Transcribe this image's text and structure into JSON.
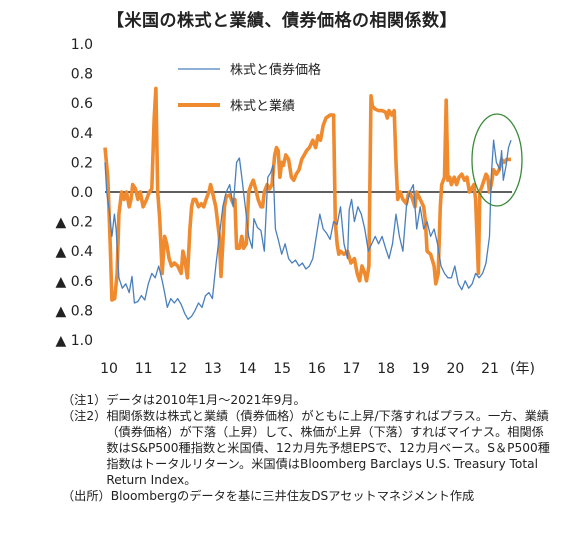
{
  "chart_data": {
    "type": "line",
    "title": "【米国の株式と業績、債券価格の相関係数】",
    "x_unit_label": "(年)",
    "x_tick_labels": [
      "10",
      "11",
      "12",
      "13",
      "14",
      "15",
      "16",
      "17",
      "18",
      "19",
      "20",
      "21"
    ],
    "y_tick_labels": [
      "1.0",
      "0.8",
      "0.6",
      "0.4",
      "0.2",
      "0.0",
      "▲ 0.2",
      "▲ 0.4",
      "▲ 0.6",
      "▲ 0.8",
      "▲ 1.0"
    ],
    "ylim": [
      -1.0,
      1.0
    ],
    "xlim": [
      2010.0,
      2021.75
    ],
    "zero_line": true,
    "grid": false,
    "legend_position": "top-center",
    "annotation": "green ellipse around 2021",
    "series": [
      {
        "name": "株式と債券価格",
        "color": "#4a7fbd",
        "points": [
          [
            2010.0,
            0.2
          ],
          [
            2010.05,
            0.0
          ],
          [
            2010.12,
            -0.12
          ],
          [
            2010.2,
            -0.3
          ],
          [
            2010.27,
            -0.15
          ],
          [
            2010.32,
            -0.25
          ],
          [
            2010.4,
            -0.58
          ],
          [
            2010.5,
            -0.65
          ],
          [
            2010.6,
            -0.62
          ],
          [
            2010.7,
            -0.68
          ],
          [
            2010.78,
            -0.57
          ],
          [
            2010.85,
            -0.75
          ],
          [
            2010.95,
            -0.74
          ],
          [
            2011.05,
            -0.7
          ],
          [
            2011.15,
            -0.73
          ],
          [
            2011.25,
            -0.62
          ],
          [
            2011.35,
            -0.55
          ],
          [
            2011.45,
            -0.58
          ],
          [
            2011.55,
            -0.5
          ],
          [
            2011.65,
            -0.6
          ],
          [
            2011.72,
            -0.68
          ],
          [
            2011.8,
            -0.78
          ],
          [
            2011.9,
            -0.72
          ],
          [
            2012.0,
            -0.75
          ],
          [
            2012.1,
            -0.72
          ],
          [
            2012.2,
            -0.76
          ],
          [
            2012.3,
            -0.82
          ],
          [
            2012.4,
            -0.86
          ],
          [
            2012.5,
            -0.84
          ],
          [
            2012.6,
            -0.8
          ],
          [
            2012.7,
            -0.75
          ],
          [
            2012.8,
            -0.78
          ],
          [
            2012.9,
            -0.7
          ],
          [
            2013.0,
            -0.68
          ],
          [
            2013.1,
            -0.72
          ],
          [
            2013.2,
            -0.5
          ],
          [
            2013.3,
            -0.3
          ],
          [
            2013.4,
            -0.1
          ],
          [
            2013.5,
            0.0
          ],
          [
            2013.6,
            0.05
          ],
          [
            2013.7,
            -0.1
          ],
          [
            2013.8,
            0.2
          ],
          [
            2013.88,
            0.23
          ],
          [
            2013.95,
            0.1
          ],
          [
            2014.05,
            -0.1
          ],
          [
            2014.15,
            -0.3
          ],
          [
            2014.25,
            -0.38
          ],
          [
            2014.3,
            -0.18
          ],
          [
            2014.4,
            -0.24
          ],
          [
            2014.5,
            -0.26
          ],
          [
            2014.6,
            -0.4
          ],
          [
            2014.7,
            0.1
          ],
          [
            2014.78,
            0.13
          ],
          [
            2014.85,
            0.18
          ],
          [
            2014.92,
            -0.25
          ],
          [
            2015.0,
            -0.32
          ],
          [
            2015.1,
            -0.42
          ],
          [
            2015.2,
            -0.35
          ],
          [
            2015.3,
            -0.45
          ],
          [
            2015.4,
            -0.48
          ],
          [
            2015.5,
            -0.46
          ],
          [
            2015.6,
            -0.5
          ],
          [
            2015.7,
            -0.48
          ],
          [
            2015.8,
            -0.52
          ],
          [
            2015.9,
            -0.5
          ],
          [
            2016.0,
            -0.45
          ],
          [
            2016.1,
            -0.3
          ],
          [
            2016.2,
            -0.15
          ],
          [
            2016.3,
            -0.25
          ],
          [
            2016.4,
            -0.28
          ],
          [
            2016.5,
            -0.32
          ],
          [
            2016.6,
            -0.2
          ],
          [
            2016.7,
            -0.22
          ],
          [
            2016.8,
            -0.1
          ],
          [
            2016.9,
            -0.35
          ],
          [
            2017.0,
            -0.45
          ],
          [
            2017.05,
            -0.12
          ],
          [
            2017.12,
            -0.05
          ],
          [
            2017.2,
            -0.2
          ],
          [
            2017.3,
            -0.1
          ],
          [
            2017.4,
            -0.15
          ],
          [
            2017.5,
            -0.25
          ],
          [
            2017.6,
            -0.4
          ],
          [
            2017.7,
            -0.35
          ],
          [
            2017.8,
            -0.3
          ],
          [
            2017.9,
            -0.35
          ],
          [
            2018.0,
            -0.3
          ],
          [
            2018.1,
            -0.38
          ],
          [
            2018.2,
            -0.45
          ],
          [
            2018.3,
            -0.35
          ],
          [
            2018.4,
            -0.15
          ],
          [
            2018.5,
            -0.3
          ],
          [
            2018.6,
            -0.4
          ],
          [
            2018.7,
            -0.1
          ],
          [
            2018.8,
            0.0
          ],
          [
            2018.9,
            0.05
          ],
          [
            2019.0,
            -0.25
          ],
          [
            2019.1,
            -0.1
          ],
          [
            2019.2,
            -0.25
          ],
          [
            2019.3,
            -0.2
          ],
          [
            2019.4,
            -0.3
          ],
          [
            2019.5,
            -0.25
          ],
          [
            2019.6,
            -0.35
          ],
          [
            2019.7,
            -0.5
          ],
          [
            2019.8,
            -0.55
          ],
          [
            2019.9,
            -0.58
          ],
          [
            2020.0,
            -0.58
          ],
          [
            2020.1,
            -0.5
          ],
          [
            2020.2,
            -0.62
          ],
          [
            2020.3,
            -0.66
          ],
          [
            2020.4,
            -0.6
          ],
          [
            2020.5,
            -0.65
          ],
          [
            2020.6,
            -0.62
          ],
          [
            2020.7,
            -0.55
          ],
          [
            2020.8,
            -0.58
          ],
          [
            2020.9,
            -0.55
          ],
          [
            2021.0,
            -0.48
          ],
          [
            2021.1,
            -0.3
          ],
          [
            2021.15,
            0.1
          ],
          [
            2021.22,
            0.35
          ],
          [
            2021.3,
            0.2
          ],
          [
            2021.4,
            0.15
          ],
          [
            2021.45,
            0.28
          ],
          [
            2021.5,
            0.08
          ],
          [
            2021.58,
            0.18
          ],
          [
            2021.65,
            0.3
          ],
          [
            2021.72,
            0.35
          ]
        ]
      },
      {
        "name": "株式と業績",
        "color": "#f08a2e",
        "points": [
          [
            2010.0,
            0.3
          ],
          [
            2010.08,
            0.1
          ],
          [
            2010.15,
            -0.35
          ],
          [
            2010.2,
            -0.73
          ],
          [
            2010.28,
            -0.72
          ],
          [
            2010.35,
            -0.55
          ],
          [
            2010.4,
            -0.15
          ],
          [
            2010.48,
            0.0
          ],
          [
            2010.55,
            -0.05
          ],
          [
            2010.62,
            0.0
          ],
          [
            2010.7,
            -0.1
          ],
          [
            2010.75,
            -0.05
          ],
          [
            2010.8,
            0.05
          ],
          [
            2010.88,
            0.02
          ],
          [
            2010.95,
            -0.05
          ],
          [
            2011.02,
            0.0
          ],
          [
            2011.1,
            -0.1
          ],
          [
            2011.2,
            -0.05
          ],
          [
            2011.28,
            0.0
          ],
          [
            2011.35,
            0.02
          ],
          [
            2011.42,
            0.5
          ],
          [
            2011.47,
            0.7
          ],
          [
            2011.52,
            0.0
          ],
          [
            2011.58,
            -0.18
          ],
          [
            2011.65,
            -0.55
          ],
          [
            2011.72,
            -0.3
          ],
          [
            2011.78,
            -0.35
          ],
          [
            2011.85,
            -0.45
          ],
          [
            2011.92,
            -0.5
          ],
          [
            2012.0,
            -0.48
          ],
          [
            2012.1,
            -0.5
          ],
          [
            2012.2,
            -0.55
          ],
          [
            2012.25,
            -0.4
          ],
          [
            2012.3,
            -0.45
          ],
          [
            2012.38,
            -0.58
          ],
          [
            2012.45,
            -0.25
          ],
          [
            2012.5,
            -0.1
          ],
          [
            2012.55,
            -0.05
          ],
          [
            2012.62,
            -0.05
          ],
          [
            2012.7,
            -0.1
          ],
          [
            2012.78,
            -0.08
          ],
          [
            2012.85,
            -0.1
          ],
          [
            2012.92,
            -0.05
          ],
          [
            2013.0,
            0.0
          ],
          [
            2013.05,
            0.05
          ],
          [
            2013.1,
            0.0
          ],
          [
            2013.2,
            -0.1
          ],
          [
            2013.3,
            -0.3
          ],
          [
            2013.35,
            -0.57
          ],
          [
            2013.4,
            -0.35
          ],
          [
            2013.45,
            -0.1
          ],
          [
            2013.5,
            -0.03
          ],
          [
            2013.6,
            -0.02
          ],
          [
            2013.7,
            -0.08
          ],
          [
            2013.75,
            -0.05
          ],
          [
            2013.8,
            -0.38
          ],
          [
            2013.88,
            -0.38
          ],
          [
            2013.95,
            -0.3
          ],
          [
            2014.0,
            -0.38
          ],
          [
            2014.08,
            -0.35
          ],
          [
            2014.15,
            0.0
          ],
          [
            2014.22,
            0.05
          ],
          [
            2014.28,
            0.08
          ],
          [
            2014.35,
            0.02
          ],
          [
            2014.42,
            -0.05
          ],
          [
            2014.5,
            -0.1
          ],
          [
            2014.55,
            -0.1
          ],
          [
            2014.6,
            0.0
          ],
          [
            2014.68,
            0.05
          ],
          [
            2014.75,
            0.02
          ],
          [
            2014.82,
            0.05
          ],
          [
            2014.9,
            0.25
          ],
          [
            2014.95,
            0.3
          ],
          [
            2015.0,
            0.28
          ],
          [
            2015.05,
            0.1
          ],
          [
            2015.1,
            0.2
          ],
          [
            2015.15,
            0.18
          ],
          [
            2015.22,
            0.25
          ],
          [
            2015.3,
            0.22
          ],
          [
            2015.38,
            0.1
          ],
          [
            2015.45,
            0.08
          ],
          [
            2015.52,
            0.12
          ],
          [
            2015.6,
            0.15
          ],
          [
            2015.68,
            0.22
          ],
          [
            2015.75,
            0.25
          ],
          [
            2015.82,
            0.28
          ],
          [
            2015.9,
            0.3
          ],
          [
            2016.0,
            0.35
          ],
          [
            2016.08,
            0.3
          ],
          [
            2016.15,
            0.38
          ],
          [
            2016.22,
            0.35
          ],
          [
            2016.3,
            0.45
          ],
          [
            2016.38,
            0.5
          ],
          [
            2016.5,
            0.52
          ],
          [
            2016.6,
            0.52
          ],
          [
            2016.65,
            -0.2
          ],
          [
            2016.7,
            -0.35
          ],
          [
            2016.75,
            -0.42
          ],
          [
            2016.8,
            -0.4
          ],
          [
            2016.9,
            -0.42
          ],
          [
            2017.0,
            -0.4
          ],
          [
            2017.1,
            -0.48
          ],
          [
            2017.2,
            -0.45
          ],
          [
            2017.28,
            -0.55
          ],
          [
            2017.35,
            -0.6
          ],
          [
            2017.42,
            -0.5
          ],
          [
            2017.5,
            -0.55
          ],
          [
            2017.55,
            -0.6
          ],
          [
            2017.62,
            -0.5
          ],
          [
            2017.68,
            0.65
          ],
          [
            2017.72,
            0.58
          ],
          [
            2017.8,
            0.56
          ],
          [
            2017.9,
            0.55
          ],
          [
            2018.0,
            0.55
          ],
          [
            2018.1,
            0.54
          ],
          [
            2018.15,
            0.5
          ],
          [
            2018.2,
            0.55
          ],
          [
            2018.28,
            0.52
          ],
          [
            2018.35,
            0.55
          ],
          [
            2018.4,
            0.2
          ],
          [
            2018.45,
            -0.05
          ],
          [
            2018.52,
            0.0
          ],
          [
            2018.6,
            -0.05
          ],
          [
            2018.7,
            -0.08
          ],
          [
            2018.75,
            -0.02
          ],
          [
            2018.8,
            0.0
          ],
          [
            2018.88,
            -0.05
          ],
          [
            2018.95,
            -0.1
          ],
          [
            2019.0,
            0.0
          ],
          [
            2019.1,
            -0.05
          ],
          [
            2019.2,
            -0.1
          ],
          [
            2019.25,
            -0.2
          ],
          [
            2019.3,
            -0.4
          ],
          [
            2019.4,
            -0.42
          ],
          [
            2019.5,
            -0.5
          ],
          [
            2019.55,
            -0.62
          ],
          [
            2019.62,
            -0.55
          ],
          [
            2019.68,
            -0.1
          ],
          [
            2019.72,
            0.05
          ],
          [
            2019.8,
            0.1
          ],
          [
            2019.85,
            0.62
          ],
          [
            2019.9,
            0.08
          ],
          [
            2019.95,
            0.1
          ],
          [
            2020.0,
            0.05
          ],
          [
            2020.08,
            0.1
          ],
          [
            2020.15,
            0.05
          ],
          [
            2020.22,
            0.1
          ],
          [
            2020.3,
            0.12
          ],
          [
            2020.38,
            0.08
          ],
          [
            2020.45,
            0.1
          ],
          [
            2020.52,
            0.0
          ],
          [
            2020.58,
            0.02
          ],
          [
            2020.65,
            0.05
          ],
          [
            2020.7,
            -0.05
          ],
          [
            2020.78,
            -0.55
          ],
          [
            2020.82,
            0.0
          ],
          [
            2020.9,
            0.05
          ],
          [
            2021.0,
            0.12
          ],
          [
            2021.05,
            0.1
          ],
          [
            2021.1,
            0.0
          ],
          [
            2021.15,
            0.05
          ],
          [
            2021.22,
            0.15
          ],
          [
            2021.3,
            0.12
          ],
          [
            2021.38,
            0.15
          ],
          [
            2021.45,
            0.22
          ],
          [
            2021.52,
            0.2
          ],
          [
            2021.6,
            0.22
          ],
          [
            2021.72,
            0.22
          ]
        ]
      }
    ]
  },
  "notes": [
    {
      "tag": "（注1）",
      "text": "データは2010年1月～2021年9月。"
    },
    {
      "tag": "（注2）",
      "text": "相関係数は株式と業績（債券価格）がともに上昇/下落すればプラス。一方、業績（債券価格）が下落（上昇）して、株価が上昇（下落）すればマイナス。相関係数はS&P500種指数と米国債、12カ月先予想EPSで、12カ月ベース。S＆P500種指数はトータルリターン。米国債はBloomberg Barclays U.S. Treasury Total Return Index。"
    },
    {
      "tag": "（出所）",
      "text": "Bloombergのデータを基に三井住友DSアセットマネジメント作成"
    }
  ]
}
